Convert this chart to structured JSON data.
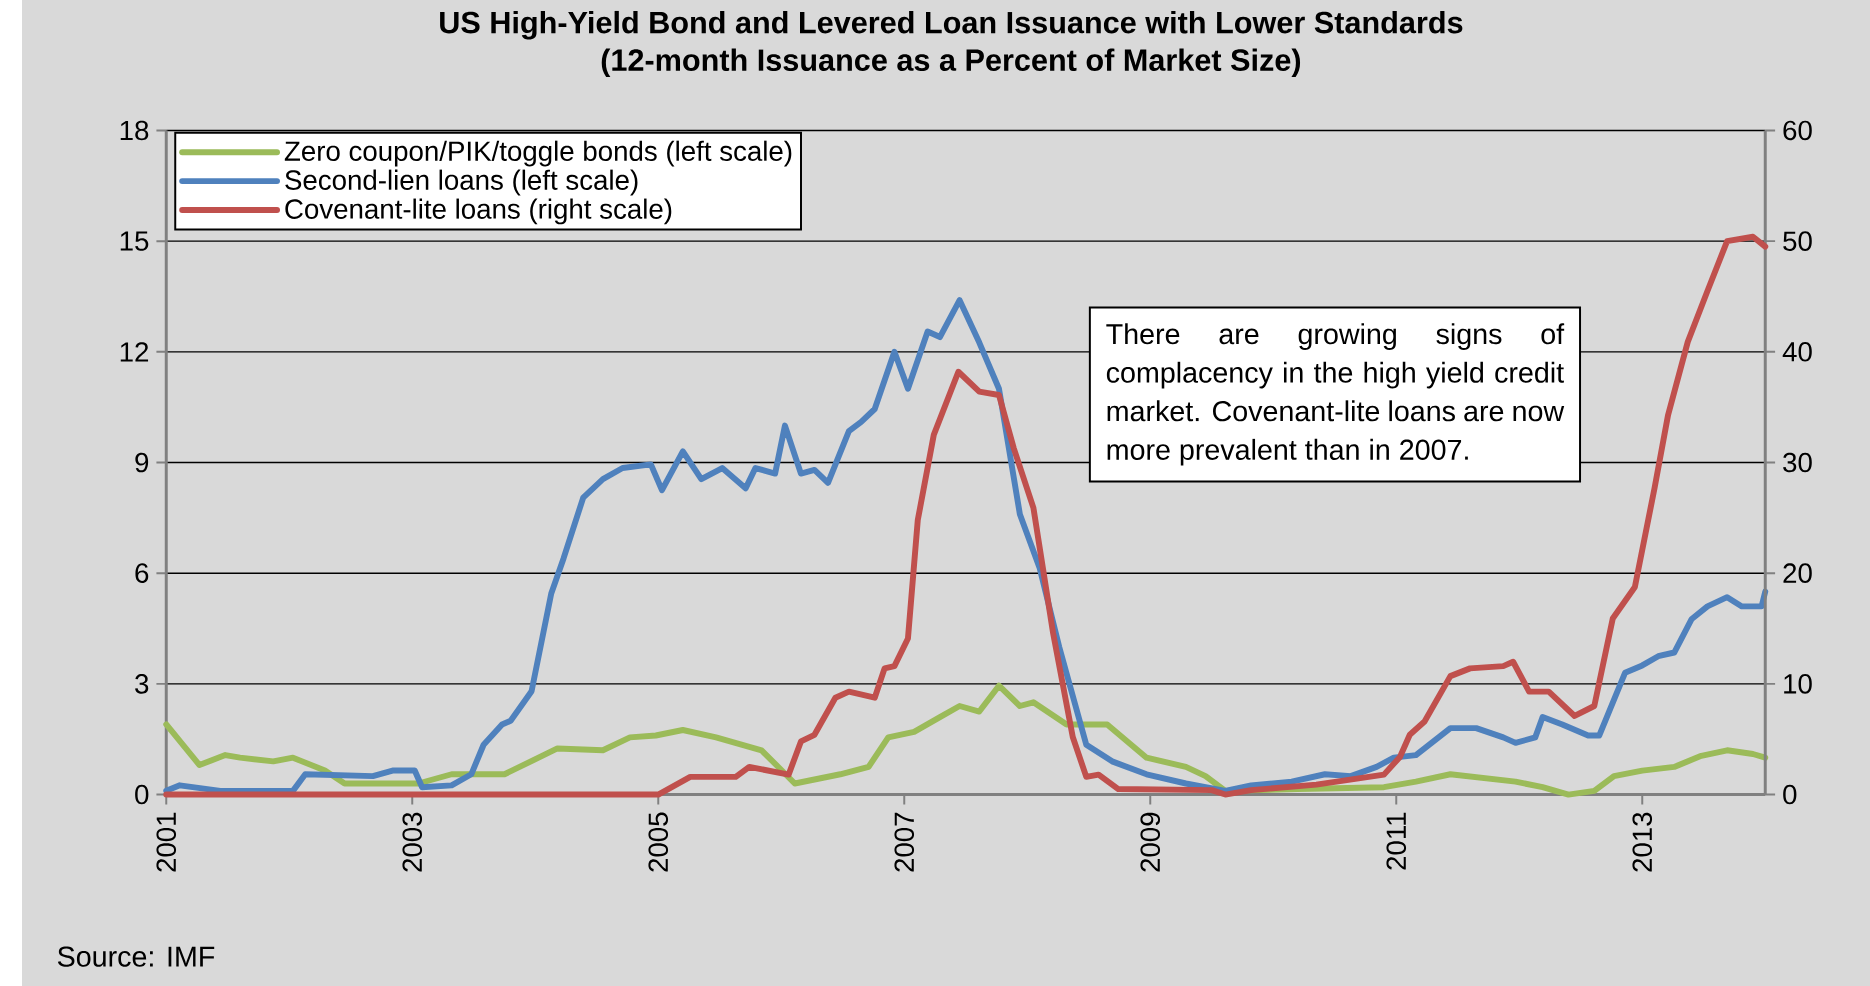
{
  "chart_data": {
    "type": "line",
    "title": "US High-Yield Bond and Levered Loan Issuance with Lower Standards",
    "subtitle": "(12-month Issuance as a Percent of Market Size)",
    "annotations": [
      "There are growing signs of complacency in the high yield credit market. Covenant-lite loans are now more prevalent than in 2007.",
      "Source: IMF"
    ],
    "xlim": [
      2001,
      2014
    ],
    "xticks": [
      2001,
      2003,
      2005,
      2007,
      2009,
      2011,
      2013
    ],
    "ylim": [
      0,
      18
    ],
    "yticks": [
      0,
      3,
      6,
      9,
      12,
      15,
      18
    ],
    "y2lim": [
      0,
      60
    ],
    "y2ticks": [
      0,
      10,
      20,
      30,
      40,
      50,
      60
    ],
    "grid": "y",
    "legend": "top left",
    "line_style": "solid",
    "marker": "none",
    "series": [
      {
        "name": "Zero coupon/PIK/toggle bonds (left scale)",
        "color": "#9bbb59",
        "x": [
          2001.0,
          2001.27,
          2001.48,
          2001.6,
          2001.87,
          2002.03,
          2002.29,
          2002.45,
          2003.05,
          2003.32,
          2003.75,
          2004.18,
          2004.55,
          2004.77,
          2004.98,
          2005.2,
          2005.47,
          2005.84,
          2006.11,
          2006.48,
          2006.71,
          2006.87,
          2007.08,
          2007.29,
          2007.45,
          2007.61,
          2007.77,
          2007.94,
          2008.05,
          2008.32,
          2008.65,
          2008.97,
          2009.29,
          2009.45,
          2009.61,
          2010.2,
          2010.9,
          2011.16,
          2011.44,
          2011.97,
          2012.19,
          2012.4,
          2012.61,
          2012.77,
          2013.0,
          2013.26,
          2013.48,
          2013.69,
          2013.9,
          2014.0
        ],
        "values": [
          1.9,
          0.8,
          1.07,
          1.0,
          0.9,
          1.0,
          0.65,
          0.3,
          0.3,
          0.55,
          0.55,
          1.25,
          1.2,
          1.55,
          1.6,
          1.75,
          1.55,
          1.2,
          0.3,
          0.55,
          0.75,
          1.55,
          1.7,
          2.1,
          2.4,
          2.25,
          2.95,
          2.4,
          2.5,
          1.9,
          1.9,
          1.0,
          0.75,
          0.5,
          0.1,
          0.15,
          0.2,
          0.35,
          0.55,
          0.35,
          0.2,
          0.0,
          0.1,
          0.5,
          0.65,
          0.75,
          1.05,
          1.2,
          1.1,
          1.0
        ]
      },
      {
        "name": "Second-lien loans (left scale)",
        "color": "#4f81bd",
        "x": [
          2001.0,
          2001.11,
          2001.44,
          2002.03,
          2002.13,
          2002.68,
          2002.84,
          2003.02,
          2003.08,
          2003.32,
          2003.48,
          2003.58,
          2003.73,
          2003.8,
          2003.97,
          2004.13,
          2004.23,
          2004.39,
          2004.55,
          2004.71,
          2004.94,
          2005.03,
          2005.2,
          2005.35,
          2005.52,
          2005.71,
          2005.79,
          2005.95,
          2006.03,
          2006.16,
          2006.27,
          2006.38,
          2006.55,
          2006.65,
          2006.76,
          2006.92,
          2007.03,
          2007.19,
          2007.29,
          2007.45,
          2007.61,
          2007.77,
          2007.94,
          2008.1,
          2008.26,
          2008.48,
          2008.69,
          2008.97,
          2009.29,
          2009.61,
          2009.82,
          2010.15,
          2010.42,
          2010.63,
          2010.84,
          2010.98,
          2011.16,
          2011.44,
          2011.65,
          2011.87,
          2011.97,
          2012.13,
          2012.19,
          2012.35,
          2012.56,
          2012.65,
          2012.86,
          2013.0,
          2013.13,
          2013.26,
          2013.4,
          2013.53,
          2013.69,
          2013.81,
          2013.97,
          2014.0
        ],
        "values": [
          0.1,
          0.25,
          0.1,
          0.1,
          0.55,
          0.5,
          0.65,
          0.65,
          0.2,
          0.25,
          0.55,
          1.35,
          1.9,
          2.0,
          2.8,
          5.45,
          6.4,
          8.05,
          8.55,
          8.85,
          8.95,
          8.25,
          9.3,
          8.55,
          8.85,
          8.3,
          8.85,
          8.7,
          10.0,
          8.7,
          8.8,
          8.45,
          9.85,
          10.1,
          10.45,
          12.0,
          11.0,
          12.55,
          12.4,
          13.4,
          12.25,
          11.0,
          7.6,
          6.15,
          4.0,
          1.35,
          0.9,
          0.55,
          0.3,
          0.1,
          0.25,
          0.35,
          0.55,
          0.5,
          0.75,
          1.0,
          1.07,
          1.8,
          1.8,
          1.55,
          1.4,
          1.55,
          2.1,
          1.9,
          1.6,
          1.6,
          3.3,
          3.5,
          3.75,
          3.85,
          4.75,
          5.1,
          5.35,
          5.1,
          5.1,
          5.5
        ]
      },
      {
        "name": "Covenant-lite loans (right scale)",
        "color": "#c0504d",
        "axis": "y2",
        "x": [
          2001.0,
          2005.0,
          2005.26,
          2005.63,
          2005.74,
          2006.06,
          2006.16,
          2006.27,
          2006.44,
          2006.55,
          2006.76,
          2006.84,
          2006.92,
          2007.03,
          2007.11,
          2007.24,
          2007.44,
          2007.61,
          2007.77,
          2007.89,
          2008.05,
          2008.21,
          2008.37,
          2008.48,
          2008.58,
          2008.74,
          2009.5,
          2009.61,
          2009.82,
          2010.35,
          2010.9,
          2011.03,
          2011.11,
          2011.23,
          2011.44,
          2011.6,
          2011.87,
          2011.95,
          2012.08,
          2012.24,
          2012.45,
          2012.61,
          2012.76,
          2012.94,
          2013.1,
          2013.21,
          2013.37,
          2013.53,
          2013.69,
          2013.9,
          2014.0
        ],
        "values": [
          0.0,
          0.0,
          1.6,
          1.6,
          2.5,
          1.8,
          4.8,
          5.4,
          8.75,
          9.3,
          8.75,
          11.4,
          11.6,
          14.1,
          24.8,
          32.5,
          38.2,
          36.4,
          36.1,
          31.3,
          25.9,
          14.6,
          5.2,
          1.6,
          1.8,
          0.5,
          0.4,
          0.0,
          0.4,
          0.9,
          1.8,
          3.4,
          5.4,
          6.6,
          10.7,
          11.4,
          11.6,
          12.0,
          9.3,
          9.3,
          7.1,
          8.0,
          15.9,
          18.75,
          27.7,
          34.3,
          40.9,
          45.5,
          50.0,
          50.4,
          49.5
        ]
      }
    ]
  }
}
